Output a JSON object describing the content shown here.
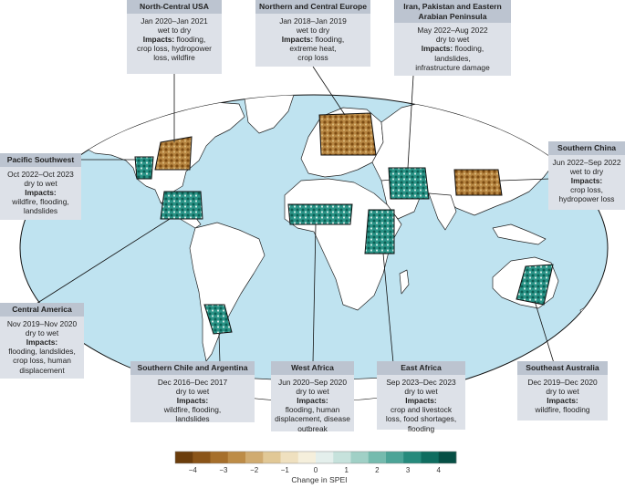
{
  "regions": [
    {
      "id": "north-central-usa",
      "title": "North-Central USA",
      "period": "Jan 2020–Jan 2021",
      "change": "wet to dry",
      "impacts_label": "Impacts:",
      "impacts_lines": [
        "flooding,",
        "crop loss, hydropower",
        "loss, wildfire"
      ],
      "tone": "dry"
    },
    {
      "id": "northern-central-europe",
      "title": "Northern and Central Europe",
      "period": "Jan 2018–Jan 2019",
      "change": "wet to dry",
      "impacts_label": "Impacts:",
      "impacts_lines": [
        "flooding,",
        "extreme heat,",
        "crop loss"
      ],
      "tone": "dry"
    },
    {
      "id": "iran-pakistan-arabia",
      "title": "Iran, Pakistan and Eastern Arabian Peninsula",
      "title_lines": [
        "Iran, Pakistan and Eastern",
        "Arabian Peninsula"
      ],
      "period": "May 2022–Aug 2022",
      "change": "dry to wet",
      "impacts_label": "Impacts:",
      "impacts_lines": [
        "flooding,",
        "landslides,",
        "infrastructure damage"
      ],
      "tone": "wet"
    },
    {
      "id": "pacific-southwest",
      "title": "Pacific Southwest",
      "period": "Oct 2022–Oct 2023",
      "change": "dry to wet",
      "impacts_label": "Impacts:",
      "impacts_lines": [
        "wildfire, flooding,",
        "landslides"
      ],
      "tone": "wet"
    },
    {
      "id": "southern-china",
      "title": "Southern China",
      "period": "Jun 2022–Sep 2022",
      "change": "wet to dry",
      "impacts_label": "Impacts:",
      "impacts_lines": [
        "crop loss,",
        "hydropower loss"
      ],
      "tone": "dry"
    },
    {
      "id": "central-america",
      "title": "Central America",
      "period": "Nov 2019–Nov 2020",
      "change": "dry to wet",
      "impacts_label": "Impacts:",
      "impacts_lines": [
        "flooding, landslides,",
        "crop loss, human",
        "displacement"
      ],
      "tone": "wet"
    },
    {
      "id": "southern-chile-argentina",
      "title": "Southern Chile and Argentina",
      "period": "Dec 2016–Dec 2017",
      "change": "dry to wet",
      "impacts_label": "Impacts:",
      "impacts_lines": [
        "wildfire, flooding,",
        "landslides"
      ],
      "tone": "wet"
    },
    {
      "id": "west-africa",
      "title": "West Africa",
      "period": "Jun 2020–Sep 2020",
      "change": "dry to wet",
      "impacts_label": "Impacts:",
      "impacts_lines": [
        "flooding, human",
        "displacement, disease",
        "outbreak"
      ],
      "tone": "wet"
    },
    {
      "id": "east-africa",
      "title": "East Africa",
      "period": "Sep 2023–Dec 2023",
      "change": "dry to wet",
      "impacts_label": "Impacts:",
      "impacts_lines": [
        "crop and livestock",
        "loss, food shortages,",
        "flooding"
      ],
      "tone": "wet"
    },
    {
      "id": "southeast-australia",
      "title": "Southeast Australia",
      "period": "Dec 2019–Dec 2020",
      "change": "dry to wet",
      "impacts_label": "Impacts:",
      "impacts_lines": [
        "wildfire, flooding"
      ],
      "tone": "wet"
    }
  ],
  "legend": {
    "title": "Change in SPEI",
    "ticks": [
      "−4",
      "−3",
      "−2",
      "−1",
      "0",
      "1",
      "2",
      "3",
      "4"
    ],
    "colors": [
      "#6b3d0c",
      "#8a5418",
      "#a66f2b",
      "#bd8c47",
      "#d0ab70",
      "#e1c896",
      "#efe0bf",
      "#f5efdc",
      "#e4efec",
      "#c6e2dc",
      "#a0d0c6",
      "#75bbae",
      "#4ca497",
      "#268a7c",
      "#0f6d60",
      "#064f45"
    ]
  },
  "colors": {
    "ocean": "#bfe3f0",
    "land": "#ffffff",
    "border": "#111111",
    "box_body": "#dde1e8",
    "box_header": "#bcc4d0",
    "dry": "#a8762f",
    "wet": "#1d8478"
  }
}
